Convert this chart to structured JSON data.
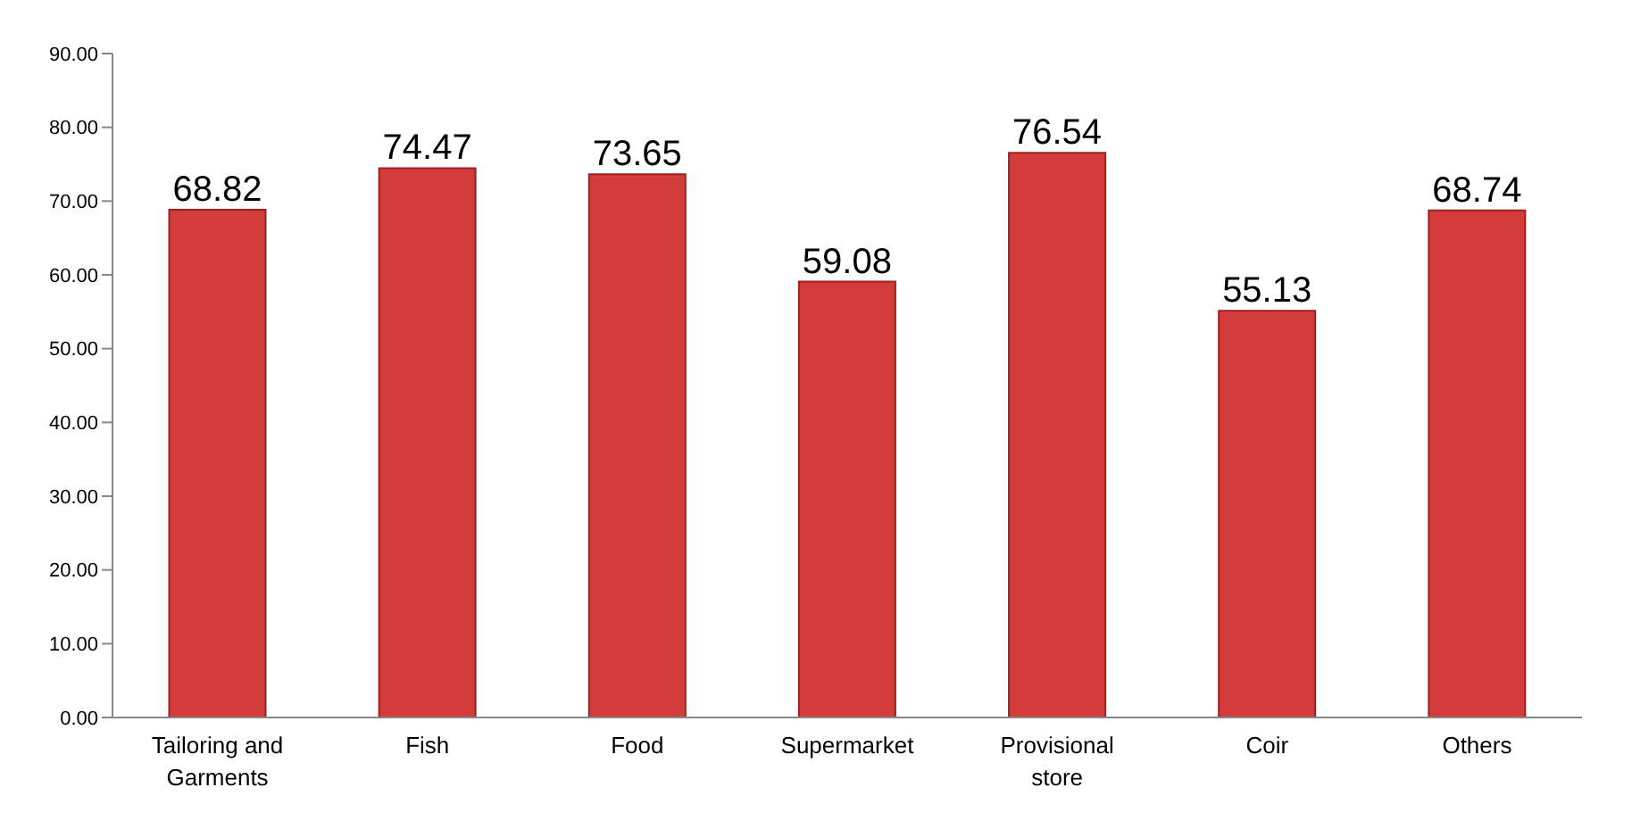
{
  "chart_data": {
    "type": "bar",
    "categories": [
      "Tailoring and Garments",
      "Fish",
      "Food",
      "Supermarket",
      "Provisional store",
      "Coir",
      "Others"
    ],
    "values": [
      68.82,
      74.47,
      73.65,
      59.08,
      76.54,
      55.13,
      68.74
    ],
    "color": "#d23c3b",
    "ylim": [
      0,
      90
    ],
    "yticks": [
      {
        "value": 0,
        "label": "0.00"
      },
      {
        "value": 10,
        "label": "10.00"
      },
      {
        "value": 20,
        "label": "20.00"
      },
      {
        "value": 30,
        "label": "30.00"
      },
      {
        "value": 40,
        "label": "40.00"
      },
      {
        "value": 50,
        "label": "50.00"
      },
      {
        "value": 60,
        "label": "60.00"
      },
      {
        "value": 70,
        "label": "70.00"
      },
      {
        "value": 80,
        "label": "80.00"
      },
      {
        "value": 90,
        "label": "90.00"
      }
    ],
    "grid": false,
    "legend": false,
    "data_labels": true
  }
}
